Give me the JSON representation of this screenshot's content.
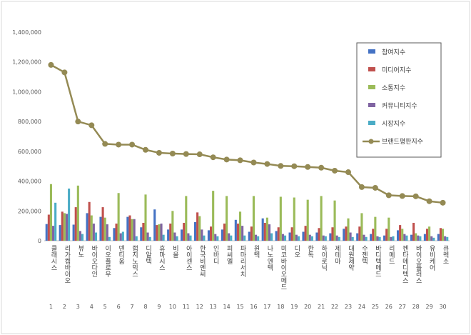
{
  "chart_data": {
    "type": "bar",
    "title": "",
    "xlabel": "",
    "ylabel": "",
    "ylim": [
      0,
      1400000
    ],
    "yticks": [
      "1,400,000",
      "1,200,000",
      "1,000,000",
      "800,000",
      "600,000",
      "400,000",
      "200,000",
      "0"
    ],
    "grid": false,
    "legend_position": "top-right",
    "numbers": [
      "1",
      "2",
      "3",
      "4",
      "5",
      "6",
      "7",
      "8",
      "9",
      "10",
      "11",
      "12",
      "13",
      "14",
      "15",
      "16",
      "17",
      "18",
      "19",
      "20",
      "21",
      "22",
      "23",
      "24",
      "25",
      "26",
      "27",
      "28",
      "29",
      "30"
    ],
    "categories": [
      "클래시스",
      "리가켐바이오",
      "뷰노",
      "바이오다인",
      "이오플로우",
      "덴티움",
      "랩지노믹스",
      "디알텍",
      "휴마시스",
      "비올",
      "아이센스",
      "한국비엔씨",
      "인바디",
      "피씨엘",
      "파마리서치",
      "원텍",
      "나노엔텍",
      "미코바이오메드",
      "디오",
      "한독",
      "하이로닉",
      "제테마",
      "대원제약",
      "수젠텍",
      "바디텍메드",
      "리메드",
      "켄타메디텍스",
      "바이오플러스",
      "유비케어",
      "큐렉소"
    ],
    "series": [
      {
        "name": "참여지수",
        "color": "#4472c4",
        "kind": "bar",
        "values": [
          112000,
          105000,
          108000,
          185000,
          160000,
          85000,
          160000,
          90000,
          210000,
          75000,
          75000,
          125000,
          70000,
          75000,
          140000,
          60000,
          150000,
          65000,
          55000,
          60000,
          55000,
          50000,
          80000,
          50000,
          45000,
          35000,
          70000,
          40000,
          45000,
          45000
        ]
      },
      {
        "name": "미디어지수",
        "color": "#c0504d",
        "kind": "bar",
        "values": [
          175000,
          195000,
          225000,
          260000,
          225000,
          115000,
          170000,
          120000,
          105000,
          115000,
          120000,
          190000,
          95000,
          115000,
          115000,
          95000,
          120000,
          90000,
          90000,
          100000,
          85000,
          90000,
          95000,
          95000,
          80000,
          80000,
          105000,
          120000,
          80000,
          85000
        ]
      },
      {
        "name": "소통지수",
        "color": "#9bbb59",
        "kind": "bar",
        "values": [
          380000,
          185000,
          370000,
          170000,
          155000,
          320000,
          145000,
          310000,
          110000,
          200000,
          300000,
          165000,
          335000,
          300000,
          195000,
          300000,
          155000,
          295000,
          290000,
          275000,
          300000,
          270000,
          150000,
          185000,
          160000,
          155000,
          80000,
          50000,
          95000,
          80000
        ]
      },
      {
        "name": "커뮤니티지수",
        "color": "#8064a2",
        "kind": "bar",
        "values": [
          100000,
          180000,
          65000,
          115000,
          110000,
          50000,
          145000,
          55000,
          115000,
          55000,
          50000,
          75000,
          45000,
          50000,
          100000,
          40000,
          110000,
          45000,
          40000,
          40000,
          35000,
          35000,
          55000,
          40000,
          30000,
          25000,
          45000,
          35000,
          30000,
          30000
        ]
      },
      {
        "name": "시장지수",
        "color": "#4bacc6",
        "kind": "bar",
        "values": [
          255000,
          350000,
          45000,
          55000,
          25000,
          60000,
          30000,
          25000,
          40000,
          30000,
          35000,
          35000,
          30000,
          35000,
          35000,
          30000,
          50000,
          35000,
          30000,
          30000,
          30000,
          25000,
          25000,
          25000,
          25000,
          30000,
          35000,
          30000,
          20000,
          25000
        ]
      },
      {
        "name": "브랜드평판지수",
        "color": "#948a54",
        "kind": "line",
        "values": [
          1180000,
          1130000,
          800000,
          775000,
          650000,
          645000,
          645000,
          610000,
          590000,
          585000,
          582000,
          580000,
          560000,
          545000,
          540000,
          525000,
          515000,
          502000,
          500000,
          495000,
          490000,
          470000,
          460000,
          360000,
          355000,
          305000,
          300000,
          298000,
          265000,
          255000
        ]
      }
    ]
  }
}
